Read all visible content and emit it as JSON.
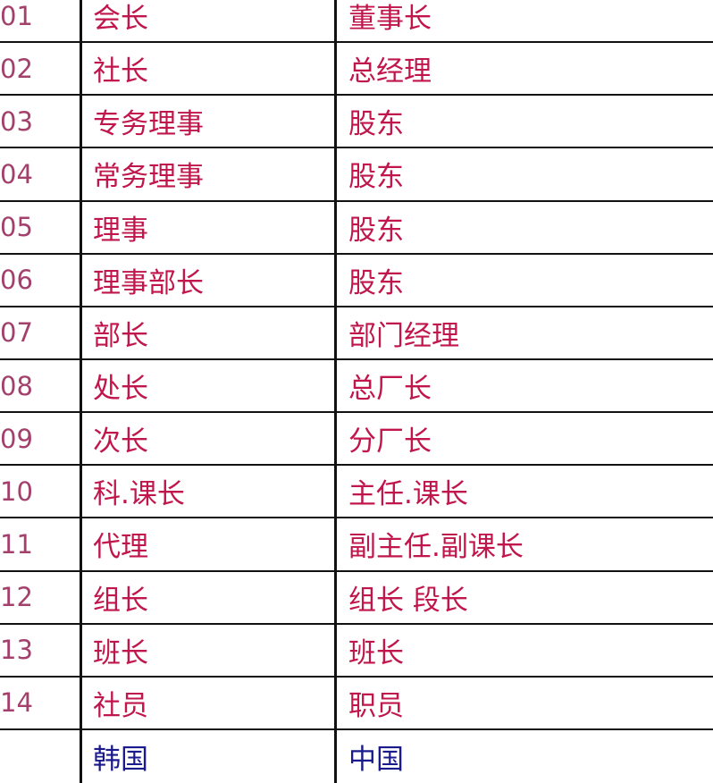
{
  "rows": [
    {
      "no": "01",
      "korea": "会长",
      "china": "董事长"
    },
    {
      "no": "02",
      "korea": "社长",
      "china": "总经理"
    },
    {
      "no": "03",
      "korea": "专务理事",
      "china": "股东"
    },
    {
      "no": "04",
      "korea": "常务理事",
      "china": "股东"
    },
    {
      "no": "05",
      "korea": "理事",
      "china": "股东"
    },
    {
      "no": "06",
      "korea": "理事部长",
      "china": "股东"
    },
    {
      "no": "07",
      "korea": "部长",
      "china": "部门经理"
    },
    {
      "no": "08",
      "korea": "处长",
      "china": "总厂长"
    },
    {
      "no": "09",
      "korea": "次长",
      "china": "分厂长"
    },
    {
      "no": "10",
      "korea": "科.课长",
      "china": "主任.课长"
    },
    {
      "no": "11",
      "korea": "代理",
      "china": "副主任.副课长"
    },
    {
      "no": "12",
      "korea": "组长",
      "china": "组长 段长"
    },
    {
      "no": "13",
      "korea": "班长",
      "china": "班长"
    },
    {
      "no": "14",
      "korea": "社员",
      "china": "职员"
    }
  ],
  "footer": {
    "korea": "韩国",
    "china": "中国"
  },
  "colors": {
    "title_text": "#c0164c",
    "number_text": "#a4406c",
    "country_text": "#1a1a8c"
  }
}
